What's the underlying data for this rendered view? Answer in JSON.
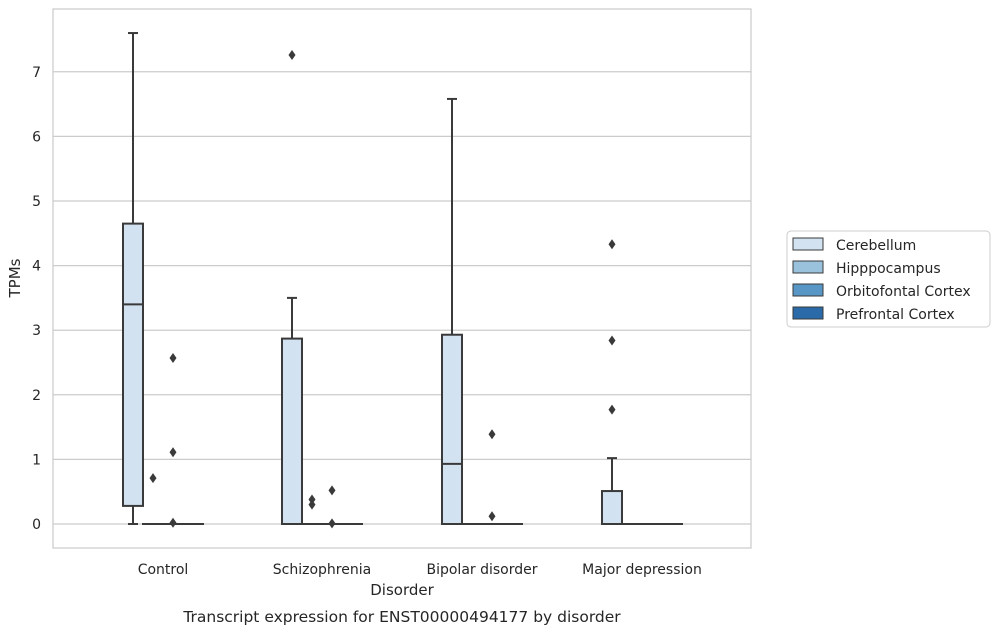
{
  "chart_data": {
    "type": "box",
    "xlabel": "Disorder",
    "ylabel": "TPMs",
    "caption": "Transcript expression for ENST00000494177 by disorder",
    "categories": [
      "Control",
      "Schizophrenia",
      "Bipolar disorder",
      "Major depression"
    ],
    "yticks": [
      0,
      1,
      2,
      3,
      4,
      5,
      6,
      7
    ],
    "ylim": [
      -0.37,
      7.9
    ],
    "grid": "horizontal",
    "legend_position": "right",
    "series": [
      {
        "name": "Cerebellum",
        "color": "#d3e2f0",
        "boxes": [
          {
            "category": "Control",
            "whislo": 0.0,
            "q1": 0.28,
            "median": 3.4,
            "q3": 4.65,
            "whishi": 7.6,
            "fliers": []
          },
          {
            "category": "Schizophrenia",
            "whislo": 0.0,
            "q1": 0.0,
            "median": 0.0,
            "q3": 2.87,
            "whishi": 3.5,
            "fliers": [
              7.26
            ]
          },
          {
            "category": "Bipolar disorder",
            "whislo": 0.0,
            "q1": 0.0,
            "median": 0.93,
            "q3": 2.93,
            "whishi": 6.58,
            "fliers": []
          },
          {
            "category": "Major depression",
            "whislo": 0.0,
            "q1": 0.0,
            "median": 0.0,
            "q3": 0.51,
            "whishi": 1.02,
            "fliers": [
              1.77,
              2.84,
              4.33
            ]
          }
        ]
      },
      {
        "name": "Hipppocampus",
        "color": "#9ac2dc",
        "boxes": [
          {
            "category": "Control",
            "whislo": 0.0,
            "q1": 0.0,
            "median": 0.0,
            "q3": 0.0,
            "whishi": 0.0,
            "fliers": [
              0.71
            ]
          },
          {
            "category": "Schizophrenia",
            "whislo": 0.0,
            "q1": 0.0,
            "median": 0.0,
            "q3": 0.0,
            "whishi": 0.0,
            "fliers": [
              0.3,
              0.38
            ]
          },
          {
            "category": "Bipolar disorder",
            "whislo": 0.0,
            "q1": 0.0,
            "median": 0.0,
            "q3": 0.0,
            "whishi": 0.0,
            "fliers": []
          },
          {
            "category": "Major depression",
            "whislo": 0.0,
            "q1": 0.0,
            "median": 0.0,
            "q3": 0.0,
            "whishi": 0.0,
            "fliers": []
          }
        ]
      },
      {
        "name": "Orbitofontal Cortex",
        "color": "#5896c6",
        "boxes": [
          {
            "category": "Control",
            "whislo": 0.0,
            "q1": 0.0,
            "median": 0.0,
            "q3": 0.0,
            "whishi": 0.0,
            "fliers": [
              0.02,
              1.11,
              2.57
            ]
          },
          {
            "category": "Schizophrenia",
            "whislo": 0.0,
            "q1": 0.0,
            "median": 0.0,
            "q3": 0.0,
            "whishi": 0.0,
            "fliers": [
              0.01,
              0.52
            ]
          },
          {
            "category": "Bipolar disorder",
            "whislo": 0.0,
            "q1": 0.0,
            "median": 0.0,
            "q3": 0.0,
            "whishi": 0.0,
            "fliers": [
              0.12,
              1.39
            ]
          },
          {
            "category": "Major depression",
            "whislo": 0.0,
            "q1": 0.0,
            "median": 0.0,
            "q3": 0.0,
            "whishi": 0.0,
            "fliers": []
          }
        ]
      },
      {
        "name": "Prefrontal Cortex",
        "color": "#2a6aa8",
        "boxes": [
          {
            "category": "Control",
            "whislo": 0.0,
            "q1": 0.0,
            "median": 0.0,
            "q3": 0.0,
            "whishi": 0.0,
            "fliers": []
          },
          {
            "category": "Schizophrenia",
            "whislo": 0.0,
            "q1": 0.0,
            "median": 0.0,
            "q3": 0.0,
            "whishi": 0.0,
            "fliers": []
          },
          {
            "category": "Bipolar disorder",
            "whislo": 0.0,
            "q1": 0.0,
            "median": 0.0,
            "q3": 0.0,
            "whishi": 0.0,
            "fliers": []
          },
          {
            "category": "Major depression",
            "whislo": 0.0,
            "q1": 0.0,
            "median": 0.0,
            "q3": 0.0,
            "whishi": 0.0,
            "fliers": []
          }
        ]
      }
    ]
  }
}
